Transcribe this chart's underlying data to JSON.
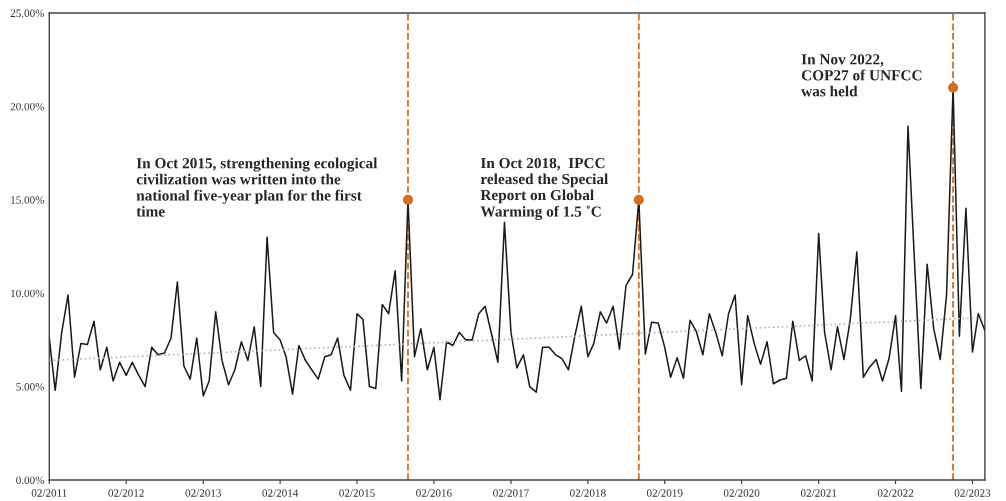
{
  "chart_data": {
    "type": "line",
    "x": [
      "2011-02",
      "2011-03",
      "2011-04",
      "2011-05",
      "2011-06",
      "2011-07",
      "2011-08",
      "2011-09",
      "2011-10",
      "2011-11",
      "2011-12",
      "2012-01",
      "2012-02",
      "2012-03",
      "2012-04",
      "2012-05",
      "2012-06",
      "2012-07",
      "2012-08",
      "2012-09",
      "2012-10",
      "2012-11",
      "2012-12",
      "2013-01",
      "2013-02",
      "2013-03",
      "2013-04",
      "2013-05",
      "2013-06",
      "2013-07",
      "2013-08",
      "2013-09",
      "2013-10",
      "2013-11",
      "2013-12",
      "2014-01",
      "2014-02",
      "2014-03",
      "2014-04",
      "2014-05",
      "2014-06",
      "2014-07",
      "2014-08",
      "2014-09",
      "2014-10",
      "2014-11",
      "2014-12",
      "2015-01",
      "2015-02",
      "2015-03",
      "2015-04",
      "2015-05",
      "2015-06",
      "2015-07",
      "2015-08",
      "2015-09",
      "2015-10",
      "2015-11",
      "2015-12",
      "2016-01",
      "2016-02",
      "2016-03",
      "2016-04",
      "2016-05",
      "2016-06",
      "2016-07",
      "2016-08",
      "2016-09",
      "2016-10",
      "2016-11",
      "2016-12",
      "2017-01",
      "2017-02",
      "2017-03",
      "2017-04",
      "2017-05",
      "2017-06",
      "2017-07",
      "2017-08",
      "2017-09",
      "2017-10",
      "2017-11",
      "2017-12",
      "2018-01",
      "2018-02",
      "2018-03",
      "2018-04",
      "2018-05",
      "2018-06",
      "2018-07",
      "2018-08",
      "2018-09",
      "2018-10",
      "2018-11",
      "2018-12",
      "2019-01",
      "2019-02",
      "2019-03",
      "2019-04",
      "2019-05",
      "2019-06",
      "2019-07",
      "2019-08",
      "2019-09",
      "2019-10",
      "2019-11",
      "2019-12",
      "2020-01",
      "2020-02",
      "2020-03",
      "2020-04",
      "2020-05",
      "2020-06",
      "2020-07",
      "2020-08",
      "2020-09",
      "2020-10",
      "2020-11",
      "2020-12",
      "2021-01",
      "2021-02",
      "2021-03",
      "2021-04",
      "2021-05",
      "2021-06",
      "2021-07",
      "2021-08",
      "2021-09",
      "2021-10",
      "2021-11",
      "2021-12",
      "2022-01",
      "2022-02",
      "2022-03",
      "2022-04",
      "2022-05",
      "2022-06",
      "2022-07",
      "2022-08",
      "2022-09",
      "2022-10",
      "2022-11",
      "2022-12",
      "2023-01",
      "2023-02",
      "2023-03",
      "2023-04"
    ],
    "series": [
      {
        "color": "#1a1a1a",
        "values": [
          7.6,
          4.8,
          7.9,
          9.9,
          5.5,
          7.3,
          7.25,
          8.5,
          5.9,
          7.1,
          5.3,
          6.3,
          5.6,
          6.3,
          5.6,
          5.0,
          7.1,
          6.7,
          6.8,
          7.6,
          10.6,
          6.1,
          5.4,
          7.6,
          4.5,
          5.3,
          9.0,
          6.4,
          5.1,
          5.9,
          7.4,
          6.4,
          8.2,
          5.0,
          13.0,
          7.9,
          7.5,
          6.6,
          4.6,
          7.2,
          6.4,
          5.9,
          5.4,
          6.6,
          6.7,
          7.6,
          5.6,
          4.8,
          8.9,
          8.6,
          5.0,
          4.9,
          9.4,
          8.9,
          11.2,
          5.3,
          15.0,
          6.6,
          8.1,
          5.9,
          7.1,
          4.3,
          7.4,
          7.2,
          7.9,
          7.5,
          7.5,
          8.9,
          9.3,
          7.8,
          6.3,
          13.8,
          7.9,
          6.0,
          6.7,
          5.0,
          4.7,
          7.1,
          7.1,
          6.7,
          6.5,
          5.9,
          7.7,
          9.3,
          6.6,
          7.3,
          9.0,
          8.4,
          9.3,
          7.0,
          10.4,
          11.0,
          15.0,
          6.75,
          8.45,
          8.4,
          7.1,
          5.5,
          6.55,
          5.45,
          8.55,
          7.95,
          6.7,
          8.9,
          7.9,
          6.65,
          8.9,
          9.9,
          5.1,
          8.8,
          7.3,
          6.2,
          7.4,
          5.15,
          5.35,
          5.45,
          8.5,
          6.4,
          6.65,
          5.3,
          13.2,
          7.9,
          5.9,
          8.2,
          6.45,
          8.6,
          12.2,
          5.5,
          6.05,
          6.45,
          5.3,
          6.5,
          8.8,
          4.75,
          18.95,
          11.9,
          4.9,
          11.55,
          8.1,
          6.45,
          9.9,
          21.0,
          7.7,
          14.55,
          6.85,
          8.9,
          8.0
        ]
      },
      {
        "type": "line",
        "color": "#b5b5b5",
        "line_style": "dotted",
        "x": [
          "2011-02",
          "2023-04"
        ],
        "values": [
          6.4,
          8.7
        ]
      },
      {
        "type": "scatter",
        "color": "#d2701e",
        "marker": "circle",
        "x": [
          "2015-10",
          "2018-10",
          "2022-11"
        ],
        "values": [
          15.0,
          15.0,
          21.0
        ]
      }
    ],
    "ref_lines": [
      {
        "axis": "x",
        "value": "2015-10",
        "color": "#d2701e",
        "line_style": "dashed"
      },
      {
        "axis": "x",
        "value": "2018-10",
        "color": "#d2701e",
        "line_style": "dashed"
      },
      {
        "axis": "x",
        "value": "2022-11",
        "color": "#d2701e",
        "line_style": "dashed"
      }
    ],
    "annotations": [
      {
        "text": "In Oct 2015, strengthening ecological\ncivilization was written into the\nnational five-year plan for the first\ntime",
        "x": "2015-10",
        "y": 15.0
      },
      {
        "text": "In Oct 2018,  IPCC\nreleased the Special\nReport on Global\nWarming of 1.5 ˚C",
        "x": "2018-10",
        "y": 15.0
      },
      {
        "text": "In Nov 2022,\nCOP27 of UNFCC\nwas held",
        "x": "2022-11",
        "y": 21.0
      }
    ],
    "xlim": [
      "2011-02",
      "2023-04"
    ],
    "xticks": [
      {
        "value": "2011-02",
        "label": "02/2011"
      },
      {
        "value": "2012-02",
        "label": "02/2012"
      },
      {
        "value": "2013-02",
        "label": "02/2013"
      },
      {
        "value": "2014-02",
        "label": "02/2014"
      },
      {
        "value": "2015-02",
        "label": "02/2015"
      },
      {
        "value": "2016-02",
        "label": "02/2016"
      },
      {
        "value": "2017-02",
        "label": "02/2017"
      },
      {
        "value": "2018-02",
        "label": "02/2018"
      },
      {
        "value": "2019-02",
        "label": "02/2019"
      },
      {
        "value": "2020-02",
        "label": "02/2020"
      },
      {
        "value": "2021-02",
        "label": "02/2021"
      },
      {
        "value": "2022-02",
        "label": "02/2022"
      },
      {
        "value": "2023-02",
        "label": "02/2023"
      }
    ],
    "ylim": [
      0,
      25
    ],
    "yticks": [
      {
        "value": 0,
        "label": "0.00%"
      },
      {
        "value": 5,
        "label": "5.00%"
      },
      {
        "value": 10,
        "label": "10.00%"
      },
      {
        "value": 15,
        "label": "15.00%"
      },
      {
        "value": 20,
        "label": "20.00%"
      },
      {
        "value": 25,
        "label": "25.00%"
      }
    ],
    "grid": false
  }
}
